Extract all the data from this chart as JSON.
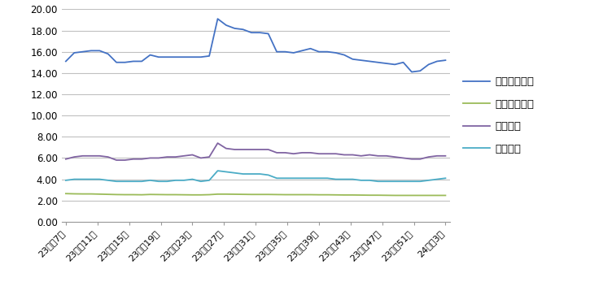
{
  "x_labels": [
    "23年第7周",
    "23年第11周",
    "23年第15周",
    "23年第19周",
    "23年第23周",
    "23年第27周",
    "23年第31周",
    "23年第35周",
    "23年第39周",
    "23年第43周",
    "23年第47周",
    "23年第51周",
    "24年第3周"
  ],
  "shengzhu": [
    15.1,
    15.9,
    16.0,
    16.1,
    16.1,
    15.8,
    15.0,
    15.0,
    15.1,
    15.1,
    15.7,
    15.5,
    15.5,
    15.5,
    15.5,
    15.5,
    15.5,
    15.6,
    19.1,
    18.5,
    18.2,
    18.1,
    17.8,
    17.8,
    17.7,
    16.0,
    16.0,
    15.9,
    16.1,
    16.3,
    16.0,
    16.0,
    15.9,
    15.7,
    15.3,
    15.2,
    15.1,
    15.0,
    14.9,
    14.8,
    15.0,
    14.1,
    14.2,
    14.8,
    15.1,
    15.2
  ],
  "yumi": [
    2.65,
    2.63,
    2.62,
    2.62,
    2.6,
    2.58,
    2.56,
    2.55,
    2.55,
    2.54,
    2.57,
    2.56,
    2.55,
    2.55,
    2.54,
    2.53,
    2.53,
    2.55,
    2.6,
    2.6,
    2.59,
    2.58,
    2.57,
    2.57,
    2.57,
    2.56,
    2.55,
    2.55,
    2.55,
    2.55,
    2.54,
    2.54,
    2.53,
    2.52,
    2.52,
    2.51,
    2.5,
    2.5,
    2.49,
    2.48,
    2.48,
    2.48,
    2.48,
    2.48,
    2.48,
    2.48
  ],
  "zhuliang": [
    5.9,
    6.1,
    6.2,
    6.2,
    6.2,
    6.1,
    5.8,
    5.8,
    5.9,
    5.9,
    6.0,
    6.0,
    6.1,
    6.1,
    6.2,
    6.3,
    6.0,
    6.1,
    7.4,
    6.9,
    6.8,
    6.8,
    6.8,
    6.8,
    6.8,
    6.5,
    6.5,
    6.4,
    6.5,
    6.5,
    6.4,
    6.4,
    6.4,
    6.3,
    6.3,
    6.2,
    6.3,
    6.2,
    6.2,
    6.1,
    6.0,
    5.9,
    5.9,
    6.1,
    6.2,
    6.2
  ],
  "zhuliao": [
    3.9,
    4.0,
    4.0,
    4.0,
    4.0,
    3.9,
    3.8,
    3.8,
    3.8,
    3.8,
    3.9,
    3.8,
    3.8,
    3.9,
    3.9,
    4.0,
    3.8,
    3.9,
    4.8,
    4.7,
    4.6,
    4.5,
    4.5,
    4.5,
    4.4,
    4.1,
    4.1,
    4.1,
    4.1,
    4.1,
    4.1,
    4.1,
    4.0,
    4.0,
    4.0,
    3.9,
    3.9,
    3.8,
    3.8,
    3.8,
    3.8,
    3.8,
    3.8,
    3.9,
    4.0,
    4.1
  ],
  "shengzhu_color": "#4472C4",
  "yumi_color": "#9BBB59",
  "zhuliang_color": "#8064A2",
  "zhuliao_color": "#4BACC6",
  "legend_labels": [
    "生猪出场价格",
    "玉米购进价格",
    "猪粮比价",
    "猪料比价"
  ],
  "ylim": [
    0,
    20
  ],
  "yticks": [
    0.0,
    2.0,
    4.0,
    6.0,
    8.0,
    10.0,
    12.0,
    14.0,
    16.0,
    18.0,
    20.0
  ],
  "background_color": "#FFFFFF",
  "grid_color": "#C0C0C0"
}
